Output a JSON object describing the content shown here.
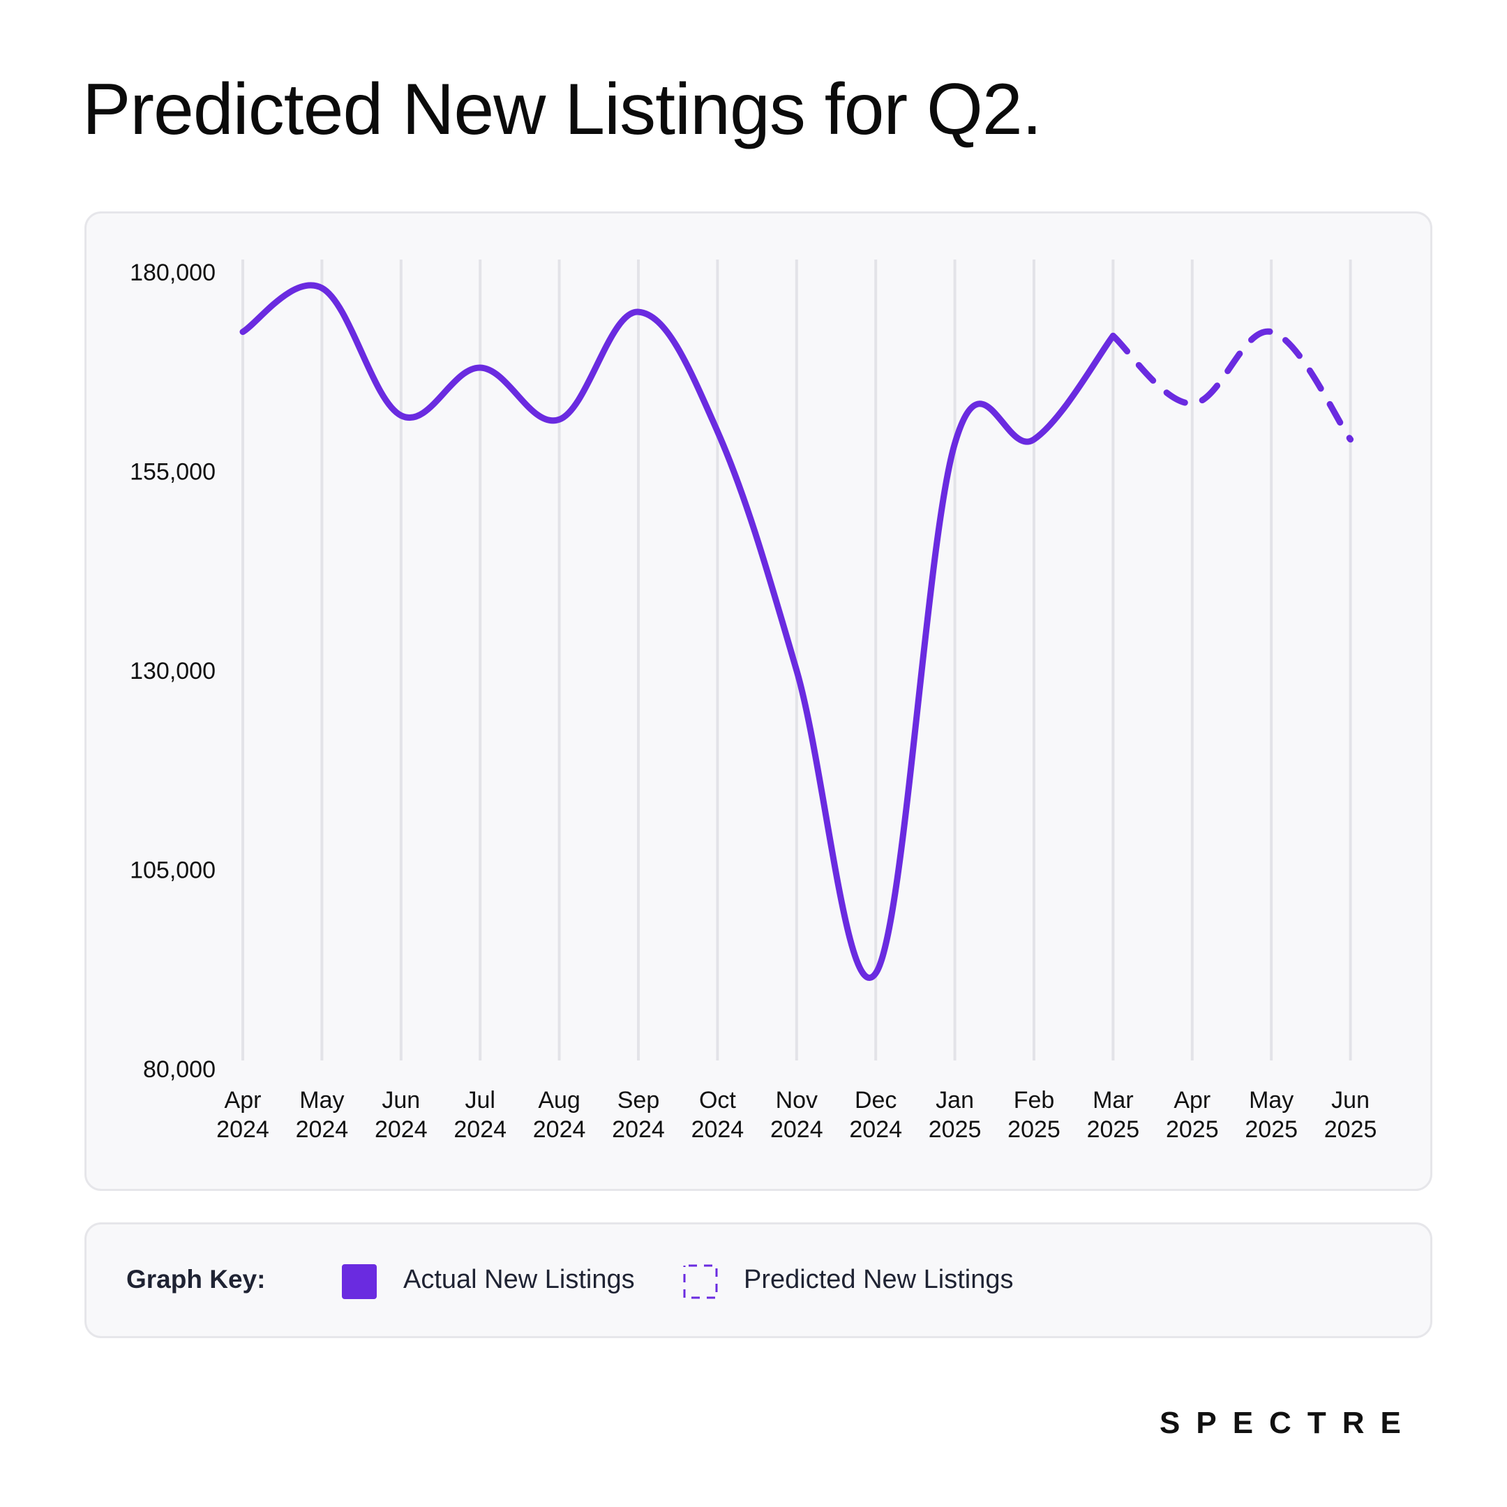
{
  "title": "Predicted New Listings for Q2.",
  "colors": {
    "accent": "#6a2be0",
    "grid": "#e3e3e8",
    "card_bg": "#f8f8fa",
    "card_border": "#e6e6ea"
  },
  "chart_data": {
    "type": "line",
    "title": "",
    "xlabel": "",
    "ylabel": "",
    "ylim": [
      80000,
      180000
    ],
    "yticks": [
      180000,
      155000,
      130000,
      105000,
      80000
    ],
    "ytick_labels": [
      "180,000",
      "155,000",
      "130,000",
      "105,000",
      "80,000"
    ],
    "categories": [
      [
        "Apr",
        "2024"
      ],
      [
        "May",
        "2024"
      ],
      [
        "Jun",
        "2024"
      ],
      [
        "Jul",
        "2024"
      ],
      [
        "Aug",
        "2024"
      ],
      [
        "Sep",
        "2024"
      ],
      [
        "Oct",
        "2024"
      ],
      [
        "Nov",
        "2024"
      ],
      [
        "Dec",
        "2024"
      ],
      [
        "Jan",
        "2025"
      ],
      [
        "Feb",
        "2025"
      ],
      [
        "Mar",
        "2025"
      ],
      [
        "Apr",
        "2025"
      ],
      [
        "May",
        "2025"
      ],
      [
        "Jun",
        "2025"
      ]
    ],
    "grid": true,
    "series": [
      {
        "name": "Actual New Listings",
        "style": "solid",
        "values": [
          172500,
          178000,
          162000,
          168000,
          161500,
          175000,
          160000,
          130000,
          92000,
          158500,
          159000,
          172000,
          null,
          null,
          null
        ]
      },
      {
        "name": "Predicted New Listings",
        "style": "dashed",
        "values": [
          null,
          null,
          null,
          null,
          null,
          null,
          null,
          null,
          null,
          null,
          null,
          172000,
          163500,
          172500,
          159000
        ]
      }
    ]
  },
  "legend": {
    "title": "Graph Key:",
    "actual_label": "Actual New Listings",
    "predicted_label": "Predicted New Listings"
  },
  "brand": {
    "name": "SPECTRE"
  }
}
